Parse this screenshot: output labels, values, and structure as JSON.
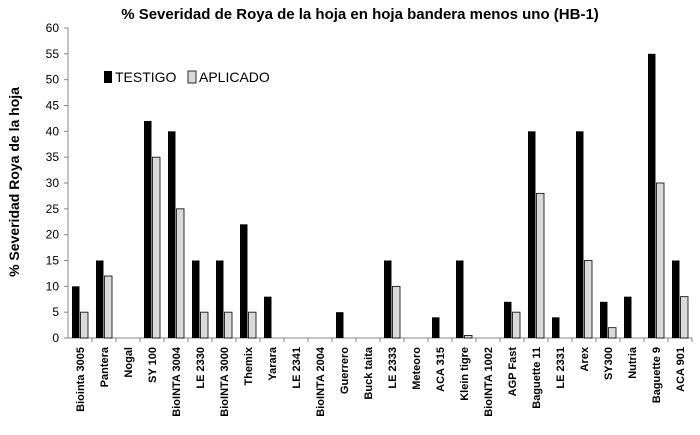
{
  "chart_data": {
    "type": "bar",
    "title": "% Severidad de Roya de la hoja en hoja bandera menos uno  (HB-1)",
    "xlabel": "",
    "ylabel": "% Severidad Roya de la hoja",
    "ylim": [
      0,
      60
    ],
    "yticks": [
      0,
      5,
      10,
      15,
      20,
      25,
      30,
      35,
      40,
      45,
      50,
      55,
      60
    ],
    "grid": false,
    "legend": "top-left",
    "categories": [
      "Biointa 3005",
      "Pantera",
      "Nogal",
      "SY 100",
      "BioINTA 3004",
      "LE 2330",
      "BioINTA 3000",
      "Themix",
      "Yarara",
      "LE 2341",
      "BioINTA 2004",
      "Guerrero",
      "Buck taita",
      "LE 2333",
      "Meteoro",
      "ACA 315",
      "Klein tigre",
      "BioINTA 1002",
      "AGP Fast",
      "Baguette 11",
      "LE 2331",
      "Arex",
      "SY300",
      "Nutria",
      "Baguette 9",
      "ACA 901"
    ],
    "series": [
      {
        "name": "TESTIGO",
        "color": "#000000",
        "values": [
          10,
          15,
          0,
          42,
          40,
          15,
          15,
          22,
          8,
          0,
          0,
          5,
          0,
          15,
          0,
          4,
          15,
          0,
          7,
          40,
          4,
          40,
          7,
          8,
          55,
          15
        ]
      },
      {
        "name": "APLICADO",
        "color": "#d9d9d9",
        "values": [
          5,
          12,
          0,
          35,
          25,
          5,
          5,
          5,
          0,
          0,
          0,
          0,
          0,
          10,
          0,
          0,
          0.5,
          0,
          5,
          28,
          0,
          15,
          2,
          0,
          30,
          8
        ]
      }
    ]
  }
}
